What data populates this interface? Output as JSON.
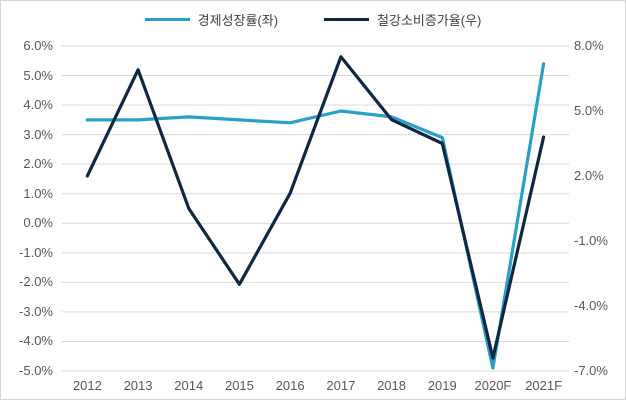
{
  "legend": {
    "position": "top",
    "items": [
      {
        "label": "경제성장률(좌)",
        "color": "#28a0cb"
      },
      {
        "label": "철강소비증가율(우)",
        "color": "#0f2742"
      }
    ]
  },
  "chart_data": {
    "type": "line",
    "title": "",
    "xlabel": "",
    "ylabel_left": "",
    "ylabel_right": "",
    "grid": true,
    "legend_position": "top",
    "categories": [
      "2012",
      "2013",
      "2014",
      "2015",
      "2016",
      "2017",
      "2018",
      "2019",
      "2020F",
      "2021F"
    ],
    "series": [
      {
        "name": "경제성장률(좌)",
        "axis": "left",
        "color": "#28a0cb",
        "values": [
          3.5,
          3.5,
          3.6,
          3.5,
          3.4,
          3.8,
          3.6,
          2.9,
          -4.9,
          5.4
        ]
      },
      {
        "name": "철강소비증가율(우)",
        "axis": "right",
        "color": "#0f2742",
        "values": [
          2.0,
          6.9,
          0.5,
          -3.0,
          1.2,
          7.5,
          4.6,
          3.5,
          -6.4,
          3.8
        ]
      }
    ],
    "left_axis": {
      "min": -5.0,
      "max": 6.0,
      "step": 1.0,
      "ticks": [
        "6.0%",
        "5.0%",
        "4.0%",
        "3.0%",
        "2.0%",
        "1.0%",
        "0.0%",
        "-1.0%",
        "-2.0%",
        "-3.0%",
        "-4.0%",
        "-5.0%"
      ]
    },
    "right_axis": {
      "min": -7.0,
      "max": 8.0,
      "step": 3.0,
      "ticks": [
        "8.0%",
        "5.0%",
        "2.0%",
        "-1.0%",
        "-4.0%",
        "-7.0%"
      ]
    },
    "gridline_color": "#d9d9d9",
    "tick_label_color": "#595959"
  }
}
